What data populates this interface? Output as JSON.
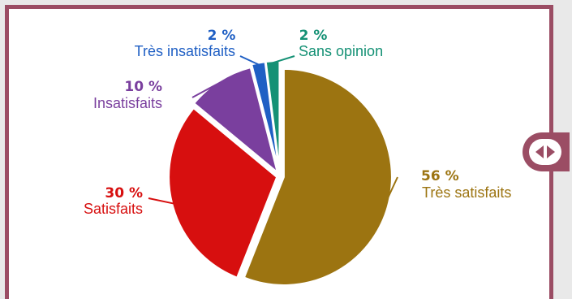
{
  "chart_data": {
    "type": "pie",
    "slices": [
      {
        "name": "Très satisfaits",
        "value": 56,
        "percent_label": "56 %",
        "color": "#9c7411"
      },
      {
        "name": "Satisfaits",
        "value": 30,
        "percent_label": "30 %",
        "color": "#d70f0f"
      },
      {
        "name": "Insatisfaits",
        "value": 10,
        "percent_label": "10 %",
        "color": "#7a3f9e"
      },
      {
        "name": "Très insatisfaits",
        "value": 2,
        "percent_label": "2 %",
        "color": "#1f5fc4"
      },
      {
        "name": "Sans opinion",
        "value": 2,
        "percent_label": "2 %",
        "color": "#159175"
      }
    ]
  },
  "ui": {
    "frame_color": "#9b4d64",
    "toggle_icon": "left-right-arrows-icon"
  }
}
